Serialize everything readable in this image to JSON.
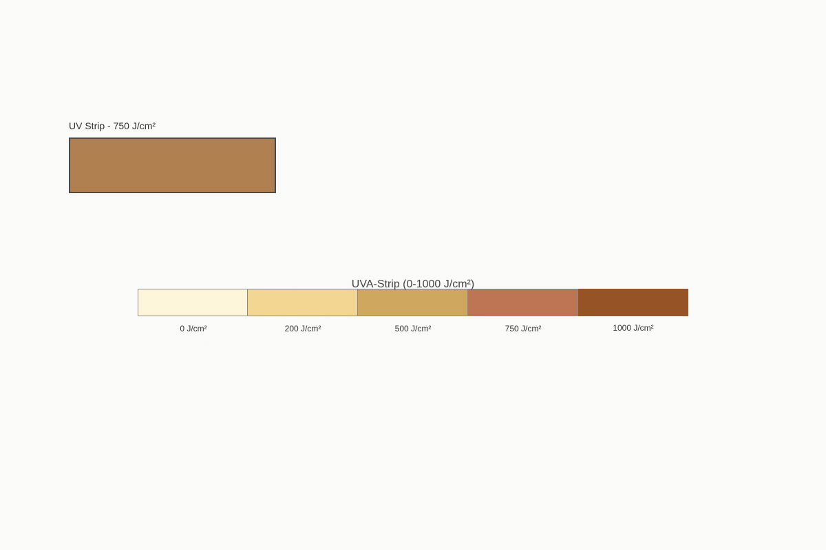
{
  "sample": {
    "label": "UV Strip - 750 J/cm²",
    "color": "#b08050"
  },
  "scale": {
    "title": "UVA-Strip (0-1000 J/cm²)",
    "steps": [
      {
        "label": "0 J/cm²",
        "color": "#fdf6da"
      },
      {
        "label": "200 J/cm²",
        "color": "#f2d691"
      },
      {
        "label": "500 J/cm²",
        "color": "#cfa75e"
      },
      {
        "label": "750 J/cm²",
        "color": "#bd7553"
      },
      {
        "label": "1000 J/cm²",
        "color": "#955326"
      }
    ]
  }
}
